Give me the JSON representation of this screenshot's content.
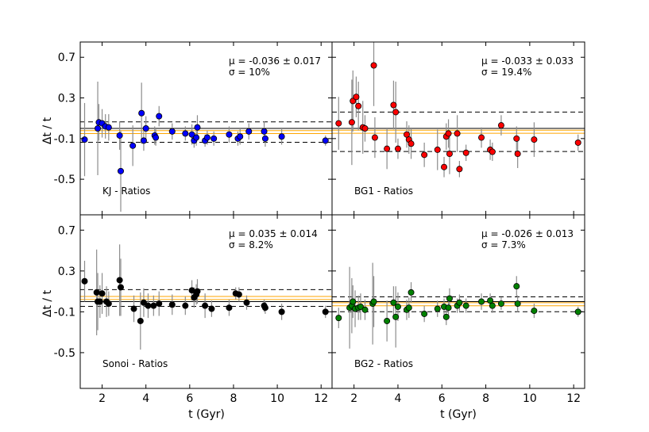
{
  "figure": {
    "xlabel": "t (Gyr)",
    "ylabel": "Δt / t",
    "xlim": [
      1,
      12.5
    ],
    "ylim": [
      -0.85,
      0.85
    ],
    "xticks": [
      2,
      4,
      6,
      8,
      10,
      12
    ],
    "yticks": [
      0.7,
      0.3,
      -0.1,
      -0.5
    ]
  },
  "chart_data": [
    {
      "type": "scatter",
      "panel": "top-left",
      "label": "KJ - Ratios",
      "color": "#0000ff",
      "mean": -0.036,
      "sigma": 0.1,
      "mu_text": "μ = -0.036 ± 0.017",
      "sigma_text": "σ = 10%",
      "points": [
        {
          "x": 1.2,
          "y": -0.11,
          "err": 0.36
        },
        {
          "x": 1.8,
          "y": 0.0,
          "err": 0.46
        },
        {
          "x": 1.85,
          "y": 0.06,
          "err": 0.18
        },
        {
          "x": 2.0,
          "y": 0.05,
          "err": 0.14
        },
        {
          "x": 2.15,
          "y": 0.02,
          "err": 0.12
        },
        {
          "x": 2.3,
          "y": 0.01,
          "err": 0.13
        },
        {
          "x": 2.8,
          "y": -0.07,
          "err": 0.14
        },
        {
          "x": 2.85,
          "y": -0.42,
          "err": 0.4
        },
        {
          "x": 3.4,
          "y": -0.17,
          "err": 0.2
        },
        {
          "x": 3.8,
          "y": 0.15,
          "err": 0.3
        },
        {
          "x": 3.9,
          "y": -0.12,
          "err": 0.1
        },
        {
          "x": 4.0,
          "y": 0.0,
          "err": 0.12
        },
        {
          "x": 4.4,
          "y": -0.07,
          "err": 0.09
        },
        {
          "x": 4.45,
          "y": -0.09,
          "err": 0.08
        },
        {
          "x": 4.6,
          "y": 0.12,
          "err": 0.1
        },
        {
          "x": 5.2,
          "y": -0.03,
          "err": 0.08
        },
        {
          "x": 5.8,
          "y": -0.05,
          "err": 0.07
        },
        {
          "x": 6.1,
          "y": -0.06,
          "err": 0.1
        },
        {
          "x": 6.2,
          "y": -0.12,
          "err": 0.07
        },
        {
          "x": 6.3,
          "y": -0.09,
          "err": 0.08
        },
        {
          "x": 6.35,
          "y": 0.01,
          "err": 0.12
        },
        {
          "x": 6.7,
          "y": -0.12,
          "err": 0.06
        },
        {
          "x": 6.8,
          "y": -0.09,
          "err": 0.07
        },
        {
          "x": 7.1,
          "y": -0.1,
          "err": 0.07
        },
        {
          "x": 7.8,
          "y": -0.06,
          "err": 0.08
        },
        {
          "x": 8.2,
          "y": -0.1,
          "err": 0.07
        },
        {
          "x": 8.3,
          "y": -0.08,
          "err": 0.08
        },
        {
          "x": 8.7,
          "y": -0.03,
          "err": 0.08
        },
        {
          "x": 9.4,
          "y": -0.03,
          "err": 0.1
        },
        {
          "x": 9.45,
          "y": -0.1,
          "err": 0.08
        },
        {
          "x": 10.2,
          "y": -0.08,
          "err": 0.08
        },
        {
          "x": 12.2,
          "y": -0.12,
          "err": 0.05
        }
      ]
    },
    {
      "type": "scatter",
      "panel": "top-right",
      "label": "BG1 - Ratios",
      "color": "#ff0000",
      "mean": -0.033,
      "sigma": 0.194,
      "mu_text": "μ = -0.033 ± 0.033",
      "sigma_text": "σ = 19.4%",
      "points": [
        {
          "x": 1.3,
          "y": 0.05,
          "err": 0.26
        },
        {
          "x": 1.9,
          "y": 0.06,
          "err": 0.42
        },
        {
          "x": 1.95,
          "y": 0.27,
          "err": 0.3
        },
        {
          "x": 2.1,
          "y": 0.31,
          "err": 0.2
        },
        {
          "x": 2.2,
          "y": 0.22,
          "err": 0.24
        },
        {
          "x": 2.4,
          "y": 0.01,
          "err": 0.26
        },
        {
          "x": 2.5,
          "y": 0.0,
          "err": 0.13
        },
        {
          "x": 2.9,
          "y": 0.62,
          "err": 0.4
        },
        {
          "x": 2.95,
          "y": -0.09,
          "err": 0.2
        },
        {
          "x": 3.5,
          "y": -0.2,
          "err": 0.2
        },
        {
          "x": 3.8,
          "y": 0.23,
          "err": 0.24
        },
        {
          "x": 3.9,
          "y": 0.16,
          "err": 0.3
        },
        {
          "x": 4.0,
          "y": -0.2,
          "err": 0.1
        },
        {
          "x": 4.4,
          "y": -0.06,
          "err": 0.13
        },
        {
          "x": 4.5,
          "y": -0.11,
          "err": 0.14
        },
        {
          "x": 4.6,
          "y": -0.15,
          "err": 0.15
        },
        {
          "x": 5.2,
          "y": -0.26,
          "err": 0.12
        },
        {
          "x": 5.8,
          "y": -0.21,
          "err": 0.2
        },
        {
          "x": 6.1,
          "y": -0.38,
          "err": 0.1
        },
        {
          "x": 6.2,
          "y": -0.08,
          "err": 0.13
        },
        {
          "x": 6.3,
          "y": -0.05,
          "err": 0.14
        },
        {
          "x": 6.35,
          "y": -0.25,
          "err": 0.2
        },
        {
          "x": 6.7,
          "y": -0.05,
          "err": 0.18
        },
        {
          "x": 6.8,
          "y": -0.4,
          "err": 0.08
        },
        {
          "x": 7.1,
          "y": -0.24,
          "err": 0.08
        },
        {
          "x": 7.8,
          "y": -0.09,
          "err": 0.1
        },
        {
          "x": 8.2,
          "y": -0.21,
          "err": 0.1
        },
        {
          "x": 8.3,
          "y": -0.23,
          "err": 0.09
        },
        {
          "x": 8.7,
          "y": 0.03,
          "err": 0.1
        },
        {
          "x": 9.4,
          "y": -0.1,
          "err": 0.12
        },
        {
          "x": 9.45,
          "y": -0.25,
          "err": 0.14
        },
        {
          "x": 10.2,
          "y": -0.11,
          "err": 0.17
        },
        {
          "x": 12.2,
          "y": -0.14,
          "err": 0.08
        }
      ]
    },
    {
      "type": "scatter",
      "panel": "bottom-left",
      "label": "Sonoi - Ratios",
      "color": "#000000",
      "mean": 0.035,
      "sigma": 0.082,
      "mu_text": "μ = 0.035 ± 0.014",
      "sigma_text": "σ = 8.2%",
      "points": [
        {
          "x": 1.2,
          "y": 0.2,
          "err": 0.2
        },
        {
          "x": 1.75,
          "y": 0.09,
          "err": 0.42
        },
        {
          "x": 1.8,
          "y": 0.0,
          "err": 0.28
        },
        {
          "x": 1.9,
          "y": 0.0,
          "err": 0.16
        },
        {
          "x": 2.0,
          "y": 0.08,
          "err": 0.2
        },
        {
          "x": 2.2,
          "y": 0.0,
          "err": 0.15
        },
        {
          "x": 2.3,
          "y": -0.02,
          "err": 0.12
        },
        {
          "x": 2.8,
          "y": 0.21,
          "err": 0.35
        },
        {
          "x": 2.85,
          "y": 0.14,
          "err": 0.28
        },
        {
          "x": 3.45,
          "y": -0.07,
          "err": 0.13
        },
        {
          "x": 3.75,
          "y": -0.19,
          "err": 0.28
        },
        {
          "x": 3.9,
          "y": -0.01,
          "err": 0.14
        },
        {
          "x": 4.1,
          "y": -0.04,
          "err": 0.12
        },
        {
          "x": 4.35,
          "y": -0.04,
          "err": 0.1
        },
        {
          "x": 4.6,
          "y": -0.02,
          "err": 0.12
        },
        {
          "x": 5.2,
          "y": -0.03,
          "err": 0.1
        },
        {
          "x": 5.8,
          "y": -0.04,
          "err": 0.09
        },
        {
          "x": 6.1,
          "y": 0.11,
          "err": 0.1
        },
        {
          "x": 6.2,
          "y": 0.04,
          "err": 0.1
        },
        {
          "x": 6.3,
          "y": 0.07,
          "err": 0.1
        },
        {
          "x": 6.35,
          "y": 0.1,
          "err": 0.12
        },
        {
          "x": 6.7,
          "y": -0.04,
          "err": 0.12
        },
        {
          "x": 7.0,
          "y": -0.07,
          "err": 0.08
        },
        {
          "x": 7.8,
          "y": -0.06,
          "err": 0.08
        },
        {
          "x": 8.1,
          "y": 0.08,
          "err": 0.06
        },
        {
          "x": 8.25,
          "y": 0.07,
          "err": 0.07
        },
        {
          "x": 8.6,
          "y": -0.01,
          "err": 0.07
        },
        {
          "x": 9.4,
          "y": -0.04,
          "err": 0.06
        },
        {
          "x": 9.45,
          "y": -0.06,
          "err": 0.06
        },
        {
          "x": 10.2,
          "y": -0.1,
          "err": 0.08
        },
        {
          "x": 12.2,
          "y": -0.1,
          "err": 0.06
        }
      ]
    },
    {
      "type": "scatter",
      "panel": "bottom-right",
      "label": "BG2 - Ratios",
      "color": "#008000",
      "mean": -0.026,
      "sigma": 0.073,
      "mu_text": "μ = -0.026 ± 0.013",
      "sigma_text": "σ = 7.3%",
      "points": [
        {
          "x": 1.3,
          "y": -0.16,
          "err": 0.1
        },
        {
          "x": 1.8,
          "y": -0.06,
          "err": 0.4
        },
        {
          "x": 1.9,
          "y": -0.04,
          "err": 0.27
        },
        {
          "x": 1.95,
          "y": 0.0,
          "err": 0.16
        },
        {
          "x": 2.05,
          "y": -0.07,
          "err": 0.18
        },
        {
          "x": 2.2,
          "y": -0.06,
          "err": 0.12
        },
        {
          "x": 2.3,
          "y": -0.05,
          "err": 0.13
        },
        {
          "x": 2.5,
          "y": -0.08,
          "err": 0.1
        },
        {
          "x": 2.85,
          "y": -0.02,
          "err": 0.4
        },
        {
          "x": 2.9,
          "y": 0.0,
          "err": 0.25
        },
        {
          "x": 3.5,
          "y": -0.19,
          "err": 0.2
        },
        {
          "x": 3.8,
          "y": -0.01,
          "err": 0.16
        },
        {
          "x": 3.9,
          "y": -0.15,
          "err": 0.3
        },
        {
          "x": 4.0,
          "y": -0.05,
          "err": 0.14
        },
        {
          "x": 4.4,
          "y": -0.08,
          "err": 0.1
        },
        {
          "x": 4.5,
          "y": -0.06,
          "err": 0.1
        },
        {
          "x": 4.6,
          "y": 0.09,
          "err": 0.1
        },
        {
          "x": 5.2,
          "y": -0.12,
          "err": 0.08
        },
        {
          "x": 5.8,
          "y": -0.07,
          "err": 0.08
        },
        {
          "x": 6.1,
          "y": -0.05,
          "err": 0.08
        },
        {
          "x": 6.2,
          "y": -0.15,
          "err": 0.08
        },
        {
          "x": 6.3,
          "y": -0.06,
          "err": 0.1
        },
        {
          "x": 6.35,
          "y": 0.03,
          "err": 0.1
        },
        {
          "x": 6.7,
          "y": -0.04,
          "err": 0.07
        },
        {
          "x": 6.8,
          "y": -0.01,
          "err": 0.08
        },
        {
          "x": 7.1,
          "y": -0.04,
          "err": 0.07
        },
        {
          "x": 7.8,
          "y": 0.0,
          "err": 0.08
        },
        {
          "x": 8.2,
          "y": 0.01,
          "err": 0.07
        },
        {
          "x": 8.3,
          "y": -0.04,
          "err": 0.07
        },
        {
          "x": 8.7,
          "y": -0.02,
          "err": 0.06
        },
        {
          "x": 9.4,
          "y": 0.15,
          "err": 0.1
        },
        {
          "x": 9.45,
          "y": -0.02,
          "err": 0.08
        },
        {
          "x": 10.2,
          "y": -0.09,
          "err": 0.07
        },
        {
          "x": 12.2,
          "y": -0.1,
          "err": 0.05
        }
      ]
    }
  ]
}
